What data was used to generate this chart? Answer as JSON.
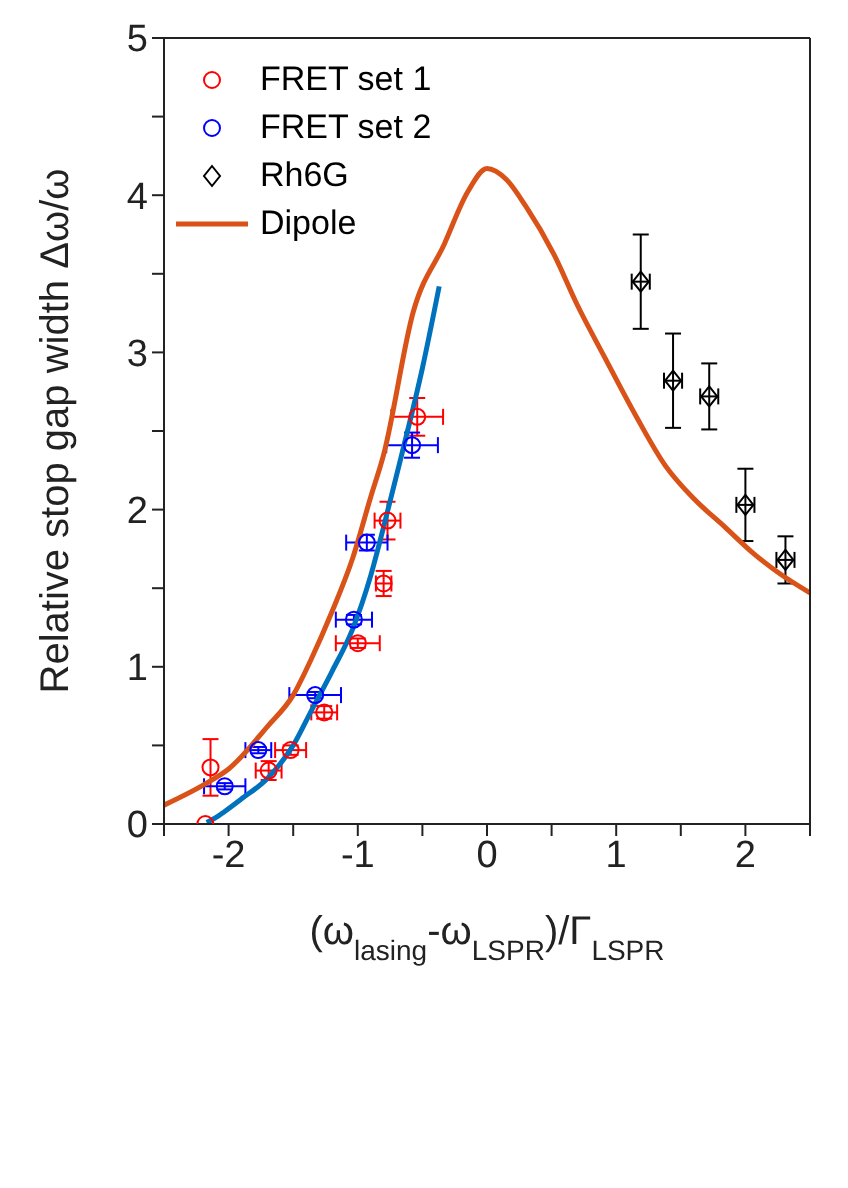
{
  "chart_data": {
    "type": "scatter",
    "xlabel": "(ω$_{lasing}$-ω$_{LSPR}$)/Γ$_{LSPR}$",
    "ylabel": "Relative stop gap width Δω/ω",
    "xlim": [
      -2.5,
      2.5
    ],
    "ylim": [
      0,
      5
    ],
    "xticks": [
      {
        "value": -2.5,
        "label": null
      },
      -2,
      {
        "value": -1.5,
        "label": null
      },
      -1,
      {
        "value": -0.5,
        "label": null
      },
      0,
      {
        "value": 0.5,
        "label": null
      },
      1,
      {
        "value": 1.5,
        "label": null
      },
      2,
      {
        "value": 2.5,
        "label": null
      }
    ],
    "yticks": [
      0,
      {
        "value": 0.5,
        "label": null
      },
      1,
      {
        "value": 1.5,
        "label": null
      },
      2,
      {
        "value": 2.5,
        "label": null
      },
      3,
      {
        "value": 3.5,
        "label": null
      },
      4,
      {
        "value": 4.5,
        "label": null
      },
      5
    ],
    "legend": "top left",
    "series": [
      {
        "name": "FRET set 1",
        "marker": "circle",
        "color": "#ff0000",
        "x": [
          -2.18,
          -2.14,
          -1.69,
          -1.52,
          -1.26,
          -1.0,
          -0.8,
          -0.77,
          -0.54
        ],
        "values": [
          0.0,
          0.36,
          0.34,
          0.47,
          0.71,
          1.15,
          1.53,
          1.93,
          2.59
        ],
        "errors": [
          null,
          0.18,
          0.06,
          0.03,
          0.04,
          0.03,
          0.08,
          0.12,
          0.12
        ],
        "xerrors": [
          null,
          null,
          0.1,
          0.12,
          0.1,
          0.17,
          0.06,
          0.1,
          0.2
        ]
      },
      {
        "name": "FRET set 2",
        "marker": "circle",
        "color": "#0000ff",
        "x": [
          -2.03,
          -1.77,
          -1.33,
          -1.03,
          -0.93,
          -0.58
        ],
        "values": [
          0.24,
          0.47,
          0.82,
          1.3,
          1.79,
          2.41
        ],
        "errors": [
          0.02,
          0.02,
          0.02,
          0.03,
          0.05,
          0.08
        ],
        "xerrors": [
          0.16,
          0.1,
          0.2,
          0.14,
          0.16,
          0.2
        ]
      },
      {
        "name": "Rh6G",
        "marker": "diamond",
        "color": "#000000",
        "x": [
          1.19,
          1.44,
          1.72,
          2.0,
          2.31
        ],
        "values": [
          3.45,
          2.82,
          2.72,
          2.03,
          1.68
        ],
        "errors": [
          0.3,
          0.3,
          0.21,
          0.23,
          0.15
        ],
        "xerrors": [
          0.07,
          0.07,
          0.07,
          0.07,
          0.07
        ]
      },
      {
        "type": "line",
        "marker": "none",
        "color": "#0072bd",
        "x": [
          -2.17,
          -2.1,
          -2.03,
          -1.9,
          -1.7,
          -1.5,
          -1.36,
          -1.2,
          -1.04,
          -0.9,
          -0.8,
          -0.66,
          -0.5,
          -0.37
        ],
        "values": [
          0.01,
          0.04,
          0.08,
          0.16,
          0.29,
          0.5,
          0.72,
          0.97,
          1.24,
          1.58,
          1.89,
          2.35,
          2.9,
          3.42
        ]
      },
      {
        "name": "Dipole",
        "type": "line",
        "marker": "none",
        "color": "#d95319",
        "x": [
          -2.5,
          -2.17,
          -2.0,
          -1.7,
          -1.5,
          -1.36,
          -1.2,
          -1.04,
          -0.9,
          -0.8,
          -0.57,
          -0.33,
          -0.15,
          0,
          0.15,
          0.3,
          0.52,
          0.7,
          0.91,
          1.15,
          1.38,
          1.6,
          1.84,
          2.05,
          2.27,
          2.5
        ],
        "values": [
          0.12,
          0.26,
          0.35,
          0.62,
          0.82,
          1.05,
          1.35,
          1.69,
          2.08,
          2.35,
          3.26,
          3.69,
          4.02,
          4.17,
          4.1,
          3.93,
          3.62,
          3.3,
          2.97,
          2.6,
          2.28,
          2.07,
          1.89,
          1.73,
          1.59,
          1.47
        ]
      }
    ]
  }
}
